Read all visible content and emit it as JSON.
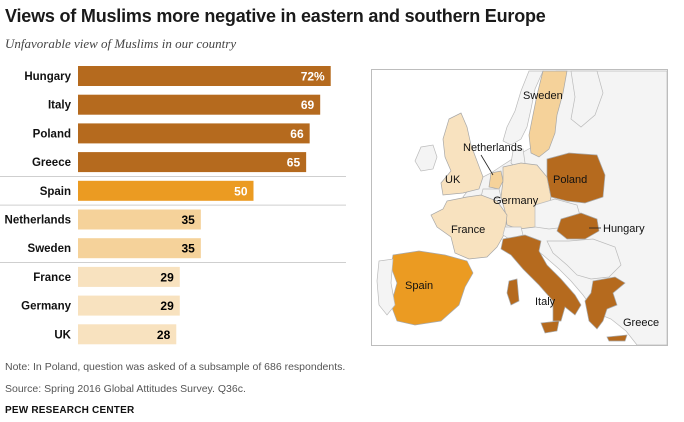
{
  "title": "Views of Muslims more negative in eastern and southern Europe",
  "subtitle": "Unfavorable view of Muslims in our country",
  "chart_data": {
    "type": "bar",
    "orientation": "horizontal",
    "title": "Views of Muslims more negative in eastern and southern Europe",
    "subtitle": "Unfavorable view of Muslims in our country",
    "categories": [
      "Hungary",
      "Italy",
      "Poland",
      "Greece",
      "Spain",
      "Netherlands",
      "Sweden",
      "France",
      "Germany",
      "UK"
    ],
    "values": [
      72,
      69,
      66,
      65,
      50,
      35,
      35,
      29,
      29,
      28
    ],
    "value_labels": [
      "72%",
      "69",
      "66",
      "65",
      "50",
      "35",
      "35",
      "29",
      "29",
      "28"
    ],
    "unit": "%",
    "xlim": [
      0,
      100
    ],
    "colors": [
      "#b56a1e",
      "#b56a1e",
      "#b56a1e",
      "#b56a1e",
      "#eb9b22",
      "#f5d29a",
      "#f5d29a",
      "#f8e2bf",
      "#f8e2bf",
      "#f8e2bf"
    ],
    "label_colors": [
      "#ffffff",
      "#ffffff",
      "#ffffff",
      "#ffffff",
      "#ffffff",
      "#000000",
      "#000000",
      "#000000",
      "#000000",
      "#000000"
    ]
  },
  "map": {
    "labels": {
      "sweden": "Sweden",
      "netherlands": "Netherlands",
      "uk": "UK",
      "poland": "Poland",
      "germany": "Germany",
      "france": "France",
      "hungary": "Hungary",
      "spain": "Spain",
      "italy": "Italy",
      "greece": "Greece"
    },
    "colors": {
      "high": "#b56a1e",
      "mid": "#eb9b22",
      "lowmid": "#f5d29a",
      "low": "#f8e2bf",
      "other": "#f4f4f4",
      "sea": "#ffffff"
    }
  },
  "notes": {
    "note": "Note: In Poland, question was asked of a subsample of 686 respondents.",
    "source": "Source: Spring 2016 Global Attitudes Survey. Q36c.",
    "brand": "PEW RESEARCH CENTER"
  }
}
